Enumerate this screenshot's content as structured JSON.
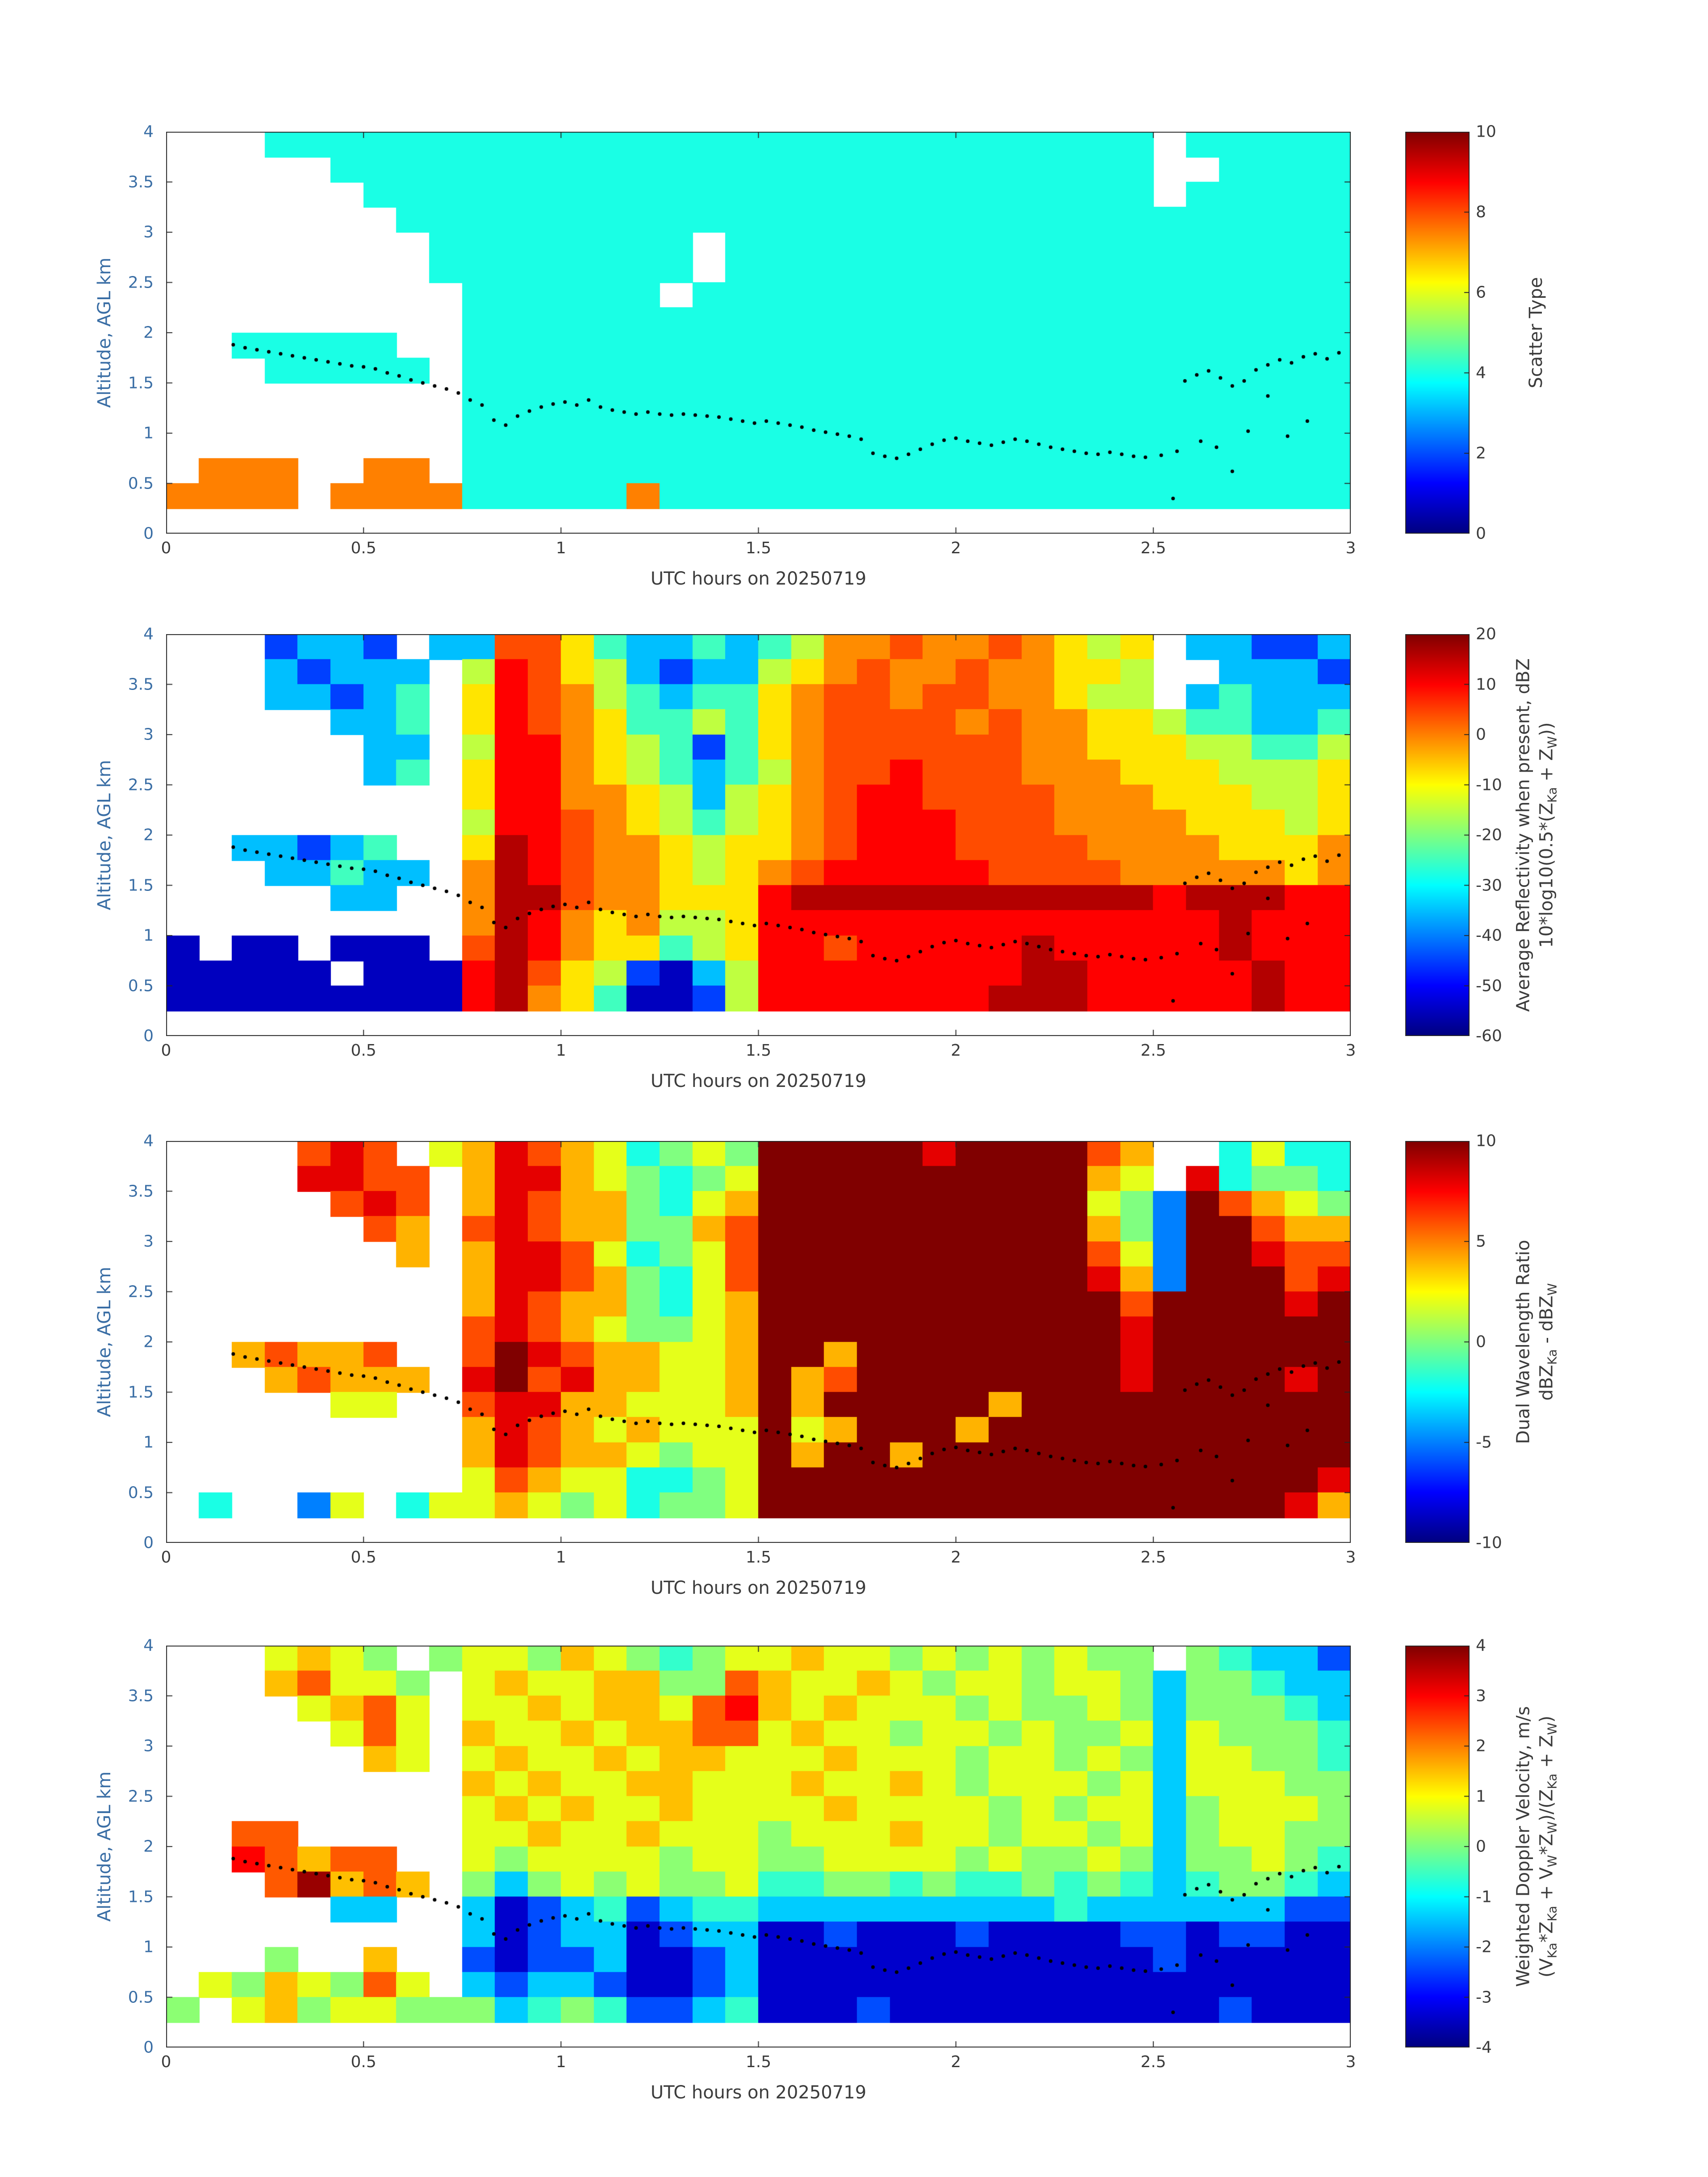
{
  "figure": {
    "xlabel": "UTC hours on 20250719",
    "ylabel": "Altitude, AGL km",
    "xlim": [
      0,
      3
    ],
    "ylim": [
      0,
      4
    ],
    "xticks": [
      0,
      0.5,
      1,
      1.5,
      2,
      2.5,
      3
    ],
    "xtick_labels": [
      "0",
      "0.5",
      "1",
      "1.5",
      "2",
      "2.5",
      "3"
    ],
    "yticks": [
      0,
      0.5,
      1,
      1.5,
      2,
      2.5,
      3,
      3.5,
      4
    ],
    "ytick_labels": [
      "0",
      "0.5",
      "1",
      "1.5",
      "2",
      "2.5",
      "3",
      "3.5",
      "4"
    ],
    "colors": {
      "ylabel": "#3a6ea5",
      "xlabel": "#3c3c3c",
      "ticks": "#3c3c3c",
      "frame": "#262626",
      "dots": "#000000"
    },
    "colormap": "jet",
    "grid": "off"
  },
  "track": {
    "points": [
      [
        0.17,
        1.88
      ],
      [
        0.2,
        1.85
      ],
      [
        0.23,
        1.83
      ],
      [
        0.26,
        1.81
      ],
      [
        0.29,
        1.79
      ],
      [
        0.32,
        1.77
      ],
      [
        0.35,
        1.75
      ],
      [
        0.38,
        1.73
      ],
      [
        0.41,
        1.71
      ],
      [
        0.44,
        1.69
      ],
      [
        0.47,
        1.67
      ],
      [
        0.5,
        1.66
      ],
      [
        0.53,
        1.64
      ],
      [
        0.56,
        1.6
      ],
      [
        0.59,
        1.57
      ],
      [
        0.62,
        1.53
      ],
      [
        0.65,
        1.5
      ],
      [
        0.68,
        1.47
      ],
      [
        0.71,
        1.44
      ],
      [
        0.74,
        1.4
      ],
      [
        0.77,
        1.33
      ],
      [
        0.8,
        1.28
      ],
      [
        0.83,
        1.13
      ],
      [
        0.86,
        1.08
      ],
      [
        0.89,
        1.17
      ],
      [
        0.92,
        1.22
      ],
      [
        0.95,
        1.26
      ],
      [
        0.98,
        1.29
      ],
      [
        1.01,
        1.31
      ],
      [
        1.04,
        1.28
      ],
      [
        1.07,
        1.33
      ],
      [
        1.1,
        1.26
      ],
      [
        1.13,
        1.23
      ],
      [
        1.16,
        1.21
      ],
      [
        1.19,
        1.19
      ],
      [
        1.22,
        1.21
      ],
      [
        1.25,
        1.19
      ],
      [
        1.28,
        1.18
      ],
      [
        1.31,
        1.19
      ],
      [
        1.34,
        1.18
      ],
      [
        1.37,
        1.17
      ],
      [
        1.4,
        1.16
      ],
      [
        1.43,
        1.14
      ],
      [
        1.46,
        1.12
      ],
      [
        1.49,
        1.1
      ],
      [
        1.52,
        1.12
      ],
      [
        1.55,
        1.1
      ],
      [
        1.58,
        1.08
      ],
      [
        1.61,
        1.06
      ],
      [
        1.64,
        1.03
      ],
      [
        1.67,
        1.01
      ],
      [
        1.7,
        0.99
      ],
      [
        1.73,
        0.97
      ],
      [
        1.76,
        0.94
      ],
      [
        1.79,
        0.8
      ],
      [
        1.82,
        0.77
      ],
      [
        1.85,
        0.75
      ],
      [
        1.88,
        0.79
      ],
      [
        1.91,
        0.84
      ],
      [
        1.94,
        0.89
      ],
      [
        1.97,
        0.93
      ],
      [
        2.0,
        0.95
      ],
      [
        2.03,
        0.92
      ],
      [
        2.06,
        0.9
      ],
      [
        2.09,
        0.88
      ],
      [
        2.12,
        0.91
      ],
      [
        2.15,
        0.94
      ],
      [
        2.18,
        0.92
      ],
      [
        2.21,
        0.89
      ],
      [
        2.24,
        0.86
      ],
      [
        2.27,
        0.84
      ],
      [
        2.3,
        0.82
      ],
      [
        2.33,
        0.8
      ],
      [
        2.36,
        0.79
      ],
      [
        2.39,
        0.81
      ],
      [
        2.42,
        0.79
      ],
      [
        2.45,
        0.77
      ],
      [
        2.48,
        0.76
      ],
      [
        2.52,
        0.78
      ],
      [
        2.55,
        0.35
      ],
      [
        2.56,
        0.82
      ],
      [
        2.58,
        1.52
      ],
      [
        2.61,
        1.58
      ],
      [
        2.62,
        0.92
      ],
      [
        2.64,
        1.62
      ],
      [
        2.66,
        0.86
      ],
      [
        2.67,
        1.55
      ],
      [
        2.7,
        1.47
      ],
      [
        2.7,
        0.62
      ],
      [
        2.73,
        1.52
      ],
      [
        2.74,
        1.02
      ],
      [
        2.76,
        1.63
      ],
      [
        2.79,
        1.68
      ],
      [
        2.79,
        1.37
      ],
      [
        2.82,
        1.73
      ],
      [
        2.84,
        0.97
      ],
      [
        2.85,
        1.7
      ],
      [
        2.88,
        1.76
      ],
      [
        2.89,
        1.12
      ],
      [
        2.91,
        1.79
      ],
      [
        2.94,
        1.74
      ],
      [
        2.97,
        1.8
      ]
    ]
  },
  "chart_data": [
    {
      "type": "heatmap",
      "colorbar_label_lines": [
        "Scatter Type"
      ],
      "clim": [
        0,
        10
      ],
      "colorbar_ticks": [
        0,
        2,
        4,
        6,
        8,
        10
      ],
      "xlabel": "UTC hours on 20250719",
      "ylabel": "Altitude, AGL km",
      "xlim": [
        0,
        3
      ],
      "ylim": [
        0,
        4
      ],
      "grid_cols": 36,
      "grid_rows": 16,
      "value_map": {
        "c": 4,
        "o": 7.5
      },
      "rows": [
        "...ccccccccccccccccccccccccccc.ccccc",
        ".....ccccccccccccccccccccccccc..cccc",
        "......cccccccccccccccccccccccc.ccccc",
        ".......ccccccccccccccccccccccccccccc",
        "........cccccccc.ccccccccccccccccccc",
        "........cccccccc.ccccccccccccccccccc",
        ".........cccccc.cccccccccccccccccccc",
        ".........ccccccccccccccccccccccccccc",
        "..ccccc..ccccccccccccccccccccccccccc",
        "...ccccc.ccccccccccccccccccccccccccc",
        ".........ccccccccccccccccccccccccccc",
        ".........ccccccccccccccccccccccccccc",
        ".........ccccccccccccccccccccccccccc",
        ".ooo..oo.ccccccccccccccccccccccccccc",
        "oooo.oooocccccoccccccccccccccccccccc",
        "...................................."
      ]
    },
    {
      "type": "heatmap",
      "colorbar_label_lines": [
        "Average Reflectivity when present, dBZ",
        "10*log10(0.5*(Z_Ka + Z_W))"
      ],
      "clim": [
        -60,
        20
      ],
      "colorbar_ticks": [
        -60,
        -50,
        -40,
        -30,
        -20,
        -10,
        0,
        10,
        20
      ],
      "xlabel": "UTC hours on 20250719",
      "ylabel": "Altitude, AGL km",
      "xlim": [
        0,
        3
      ],
      "ylim": [
        0,
        4
      ],
      "grid_cols": 36,
      "grid_rows": 16,
      "value_map": {
        "a": -55,
        "b": -45,
        "c": -35,
        "d": -25,
        "e": -15,
        "f": -8,
        "g": -1,
        "h": 4,
        "i": 10,
        "j": 16
      },
      "rows": [
        "...bccb.cchhfdccdcdegghgghgfef.ccbbc",
        "...cbccc.eihfecbccefghgghggffe..cccb",
        "...ccbcd.fihgedcddfghhghhggfee.cdccc",
        ".....ccd.fihgfddedfghhhhghggffeddccd",
        "......cc.eiigfedbdfghhhhhhggfffeedde",
        "......cd.fiigfedcdeghhihhhgggfffeeef",
        ".........fiiggfecefghiihhhhgggfffeef",
        ".........eiihgfedefghiiihhhggggfffef",
        "..ccbcd..fjihggfeffghiiihhhhggggfffg",
        "...ccdcc.gjihggfefghiiiiihhhhgggggfg",
        ".....cc..gjjhggfffijjjjjjjjjjjijjjii",
        ".........gjigfgeefiiiiiiiiiiiiiijiii",
        "a.aa.aaa.hjigffdefiihiiiiijiiiiijiii",
        "aaaaa.aaaijhfebaceiiiiiiiijjiiiiijii",
        "aaaaaaaaaijgfdaabeiiiiiiijjjiiiiijii",
        "...................................."
      ]
    },
    {
      "type": "heatmap",
      "colorbar_label_lines": [
        "Dual Wavelength Ratio",
        "dBZ_Ka - dBZ_W"
      ],
      "clim": [
        -10,
        10
      ],
      "colorbar_ticks": [
        -10,
        -5,
        0,
        5,
        10
      ],
      "xlabel": "UTC hours on 20250719",
      "ylabel": "Altitude, AGL km",
      "xlim": [
        0,
        3
      ],
      "ylim": [
        0,
        4
      ],
      "grid_cols": 36,
      "grid_rows": 16,
      "value_map": {
        "a": -8,
        "b": -5,
        "c": -2,
        "d": 0,
        "e": 2,
        "f": 4,
        "g": 6,
        "h": 8,
        "i": 10
      },
      "rows": [
        "....ghg.efhgfecdediiiiihiiiigf..cecc",
        "....hhgg.fhhfedcdeiiiiiiiiiife.hcddc",
        ".....ghg.fhgffdcefiiiiiiiiiiedbigfed",
        "......gf.ghgffddfgiiiiiiiiiifdbiigff",
        ".......f.fhhgecdegiiiiiiiiiigebiihgg",
        ".........fhhgfdcegiiiiiiiiiihfbiiigh",
        ".........fhgffdcefiiiiiiiiiiigiiiihi",
        ".........ghgfeddefiiiiiiiiiiihiiiiii",
        "..fgffg..gihgffeefiifiiiiiiiihiiiiii",
        "...fgfff.highffeefifgiiiiiiiihiiiihi",
        ".....ee..ghhffeeefifiiiiifiiiiiiiiii",
        ".........fhgfefeeeiefiiifiiiiiiiiiii",
        ".........fhgffedeeifiifiiiiiiiiiiiii",
        ".........egfeeccdeiiiiiiiiiiiiiiiiih",
        ".c..be.ceefedecddeiiiiiiiiiiiiiiiihf",
        "...................................."
      ]
    },
    {
      "type": "heatmap",
      "colorbar_label_lines": [
        "Weighted Doppler Velocity, m/s",
        "(V_Ka*Z_Ka + V_W*Z_W)/(Z_Ka + Z_W)"
      ],
      "clim": [
        -4,
        4
      ],
      "colorbar_ticks": [
        -4,
        -3,
        -2,
        -1,
        0,
        1,
        2,
        3,
        4
      ],
      "xlabel": "UTC hours on 20250719",
      "ylabel": "Altitude, AGL km",
      "xlim": [
        0,
        3
      ],
      "ylim": [
        0,
        4
      ],
      "grid_cols": 36,
      "grid_rows": 16,
      "value_map": {
        "a": -3.4,
        "b": -2.4,
        "c": -1.4,
        "d": -0.6,
        "e": 0.1,
        "f": 0.8,
        "g": 1.5,
        "h": 2.3,
        "i": 3,
        "j": 3.8
      },
      "rows": [
        "...fgfe.effegfedeffgffefefefee.edccb",
        "...ghffe.fgffggeehgffgfeffeffeceedcc",
        "....fghf.ffgfggfhigfgfffefeefeceeedc",
        ".....fhf.gffgfgghhfgffeffefeefcfeeed",
        "......gf.fgffgfggfffgfffeffefecffeed",
        ".........gfgffggfffgffgfefffefcfffee",
        ".........fgfgffgffffgffffefeffcefffe",
        "..hh.....ffgffgfffefffgffeffefceffee",
        "..ihghh..feffffeffeeffffefeefeceefed",
        "...hjghg.ecefefeefddeededdededcdeedc",
        ".....cc..cabcdbcddcccccccccdccccccbb",
        ".........cabccabccaabaaabaaaabbabbaa",
        "...e..g..babbcaabcaaaaaaaaaaaabaaaaa",
        ".fegfehf.cbccbaabcaaaaaaaaaaaaaaaaaa",
        "e.fgeffeeecdedbbcdaaabaaaaaaaaaabaaa",
        "...................................."
      ]
    }
  ]
}
